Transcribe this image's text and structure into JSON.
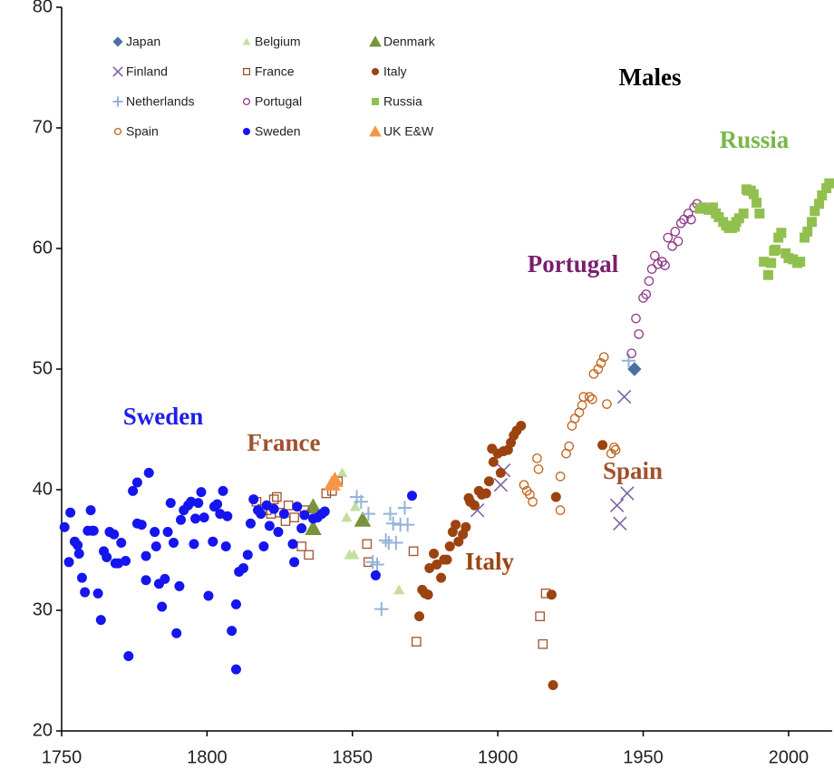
{
  "chart_data": {
    "type": "scatter",
    "annotations": [
      "Males",
      "Russia",
      "Portugal",
      "Sweden",
      "France",
      "Italy",
      "Spain"
    ],
    "xlim": [
      1750,
      2015
    ],
    "ylim": [
      20,
      80
    ],
    "xticks": [
      1750,
      1800,
      1850,
      1900,
      1950,
      2000
    ],
    "yticks": [
      20,
      30,
      40,
      50,
      60,
      70,
      80
    ],
    "legend": "upper left",
    "series": [
      {
        "name": "Japan",
        "color": "#4a6fa5",
        "marker": "diamond",
        "x": [
          1947
        ],
        "values": [
          50.0
        ]
      },
      {
        "name": "Belgium",
        "color": "#c4dea0",
        "marker": "triangle",
        "x": [
          1844,
          1846.5,
          1848,
          1849,
          1850.5,
          1851,
          1866
        ],
        "values": [
          41.0,
          41.4,
          37.7,
          34.6,
          34.6,
          38.6,
          31.7
        ]
      },
      {
        "name": "Denmark",
        "color": "#77933c",
        "marker": "triangle-large",
        "x": [
          1836.5,
          1836.5,
          1853.5
        ],
        "values": [
          38.6,
          36.8,
          37.5
        ]
      },
      {
        "name": "Finland",
        "color": "#7f63a8",
        "marker": "x",
        "x": [
          1893,
          1901,
          1902,
          1943.5,
          1941,
          1942,
          1944.5
        ],
        "values": [
          38.3,
          40.4,
          41.6,
          47.7,
          38.7,
          37.2,
          39.7
        ]
      },
      {
        "name": "France",
        "color": "#a0522d",
        "marker": "square-open",
        "x": [
          1817,
          1819,
          1820.5,
          1822,
          1823,
          1824,
          1825,
          1827,
          1828,
          1830,
          1832.5,
          1833.5,
          1835,
          1841,
          1843,
          1845,
          1855,
          1855.5,
          1871,
          1872,
          1914.5,
          1915.5,
          1916.5
        ],
        "values": [
          39.0,
          38.4,
          38.3,
          38.0,
          39.2,
          39.4,
          38.1,
          37.4,
          38.7,
          37.7,
          35.3,
          38.3,
          34.6,
          39.7,
          39.9,
          40.7,
          35.5,
          34.0,
          34.9,
          27.4,
          29.5,
          27.2,
          31.4
        ]
      },
      {
        "name": "Italy",
        "color": "#9c4311",
        "marker": "circle",
        "x": [
          1873,
          1874,
          1875,
          1876,
          1876.5,
          1878,
          1879,
          1880.5,
          1881.5,
          1882.5,
          1883.5,
          1884.5,
          1885.5,
          1886.5,
          1888,
          1889,
          1890,
          1890.5,
          1892,
          1893.5,
          1894.5,
          1896,
          1897,
          1898,
          1898.5,
          1900,
          1901,
          1902,
          1903.5,
          1904.5,
          1905.5,
          1906.5,
          1908,
          1918.5,
          1920,
          1919,
          1936
        ],
        "values": [
          29.5,
          31.7,
          31.4,
          31.3,
          33.5,
          34.7,
          33.8,
          32.7,
          34.2,
          34.2,
          35.3,
          36.5,
          37.1,
          35.7,
          36.3,
          36.9,
          39.3,
          39.0,
          38.7,
          39.9,
          39.6,
          39.7,
          40.7,
          43.4,
          42.3,
          43.0,
          41.4,
          43.2,
          43.3,
          43.9,
          44.5,
          44.9,
          45.3,
          31.3,
          39.4,
          23.8,
          43.7
        ]
      },
      {
        "name": "Netherlands",
        "color": "#95b3d7",
        "marker": "plus",
        "x": [
          1851.5,
          1853,
          1855.5,
          1857,
          1858.5,
          1860,
          1861.5,
          1863,
          1864,
          1865,
          1866.5,
          1868,
          1869,
          1862.5,
          1945
        ],
        "values": [
          39.4,
          39.0,
          38.0,
          34.0,
          33.8,
          30.1,
          35.8,
          38.0,
          37.2,
          35.6,
          37.1,
          38.5,
          37.1,
          35.6,
          50.7
        ]
      },
      {
        "name": "Portugal",
        "color": "#8e3a86",
        "marker": "circle-open",
        "x": [
          1946,
          1947.5,
          1948.5,
          1950,
          1951,
          1952,
          1953,
          1954,
          1955,
          1956.5,
          1957.5,
          1958.5,
          1960,
          1961,
          1962,
          1963,
          1964,
          1965.5,
          1966.5,
          1967.5,
          1968.5
        ],
        "values": [
          51.3,
          54.2,
          52.9,
          55.9,
          56.2,
          57.3,
          58.3,
          59.4,
          58.7,
          58.9,
          58.6,
          60.9,
          60.2,
          61.4,
          60.6,
          62.1,
          62.4,
          62.9,
          62.4,
          63.4,
          63.7
        ]
      },
      {
        "name": "Russia",
        "color": "#92c04f",
        "marker": "square",
        "x": [
          1969.5,
          1970.5,
          1972.5,
          1974,
          1975,
          1976,
          1977.5,
          1978.5,
          1979.5,
          1980.5,
          1981.5,
          1982,
          1983,
          1984.5,
          1985.5,
          1986,
          1987,
          1988,
          1989,
          1990,
          1991.5,
          1993,
          1994,
          1995,
          1995.5,
          1996.5,
          1997.5,
          1999,
          2000,
          2001.5,
          2003,
          2004,
          2005.5,
          2006.5,
          2008,
          2009,
          2010.5,
          2011.5,
          2013,
          2014
        ],
        "values": [
          63.3,
          63.4,
          63.2,
          63.4,
          62.9,
          62.6,
          62.2,
          61.9,
          61.7,
          61.7,
          61.8,
          62.2,
          62.5,
          62.9,
          64.9,
          64.8,
          64.8,
          64.5,
          63.8,
          62.9,
          58.9,
          57.8,
          58.8,
          59.8,
          59.9,
          60.9,
          61.3,
          59.6,
          59.2,
          59.1,
          58.8,
          58.9,
          60.9,
          61.4,
          62.2,
          63.1,
          63.7,
          64.4,
          65.0,
          65.4
        ]
      },
      {
        "name": "Spain",
        "color": "#c0631f",
        "marker": "circle-open",
        "x": [
          1909,
          1910,
          1911,
          1912,
          1913.5,
          1914,
          1921.5,
          1921.5,
          1923.5,
          1924.5,
          1925.5,
          1926.5,
          1928,
          1929,
          1929.5,
          1931.5,
          1932.5,
          1933,
          1934.5,
          1935.5,
          1936.5,
          1937.5,
          1939,
          1940,
          1940.5
        ],
        "values": [
          40.4,
          39.9,
          39.6,
          39.0,
          42.6,
          41.7,
          41.1,
          38.3,
          43.0,
          43.6,
          45.3,
          45.9,
          46.4,
          47.0,
          47.7,
          47.7,
          47.5,
          49.6,
          50.0,
          50.5,
          51.0,
          47.1,
          43.0,
          43.5,
          43.3
        ]
      },
      {
        "name": "Sweden",
        "color": "#1515f0",
        "marker": "circle",
        "x": [
          1751,
          1752.5,
          1753,
          1754.5,
          1755.5,
          1756,
          1757,
          1758,
          1759,
          1760,
          1760.5,
          1761,
          1762.5,
          1763.5,
          1764.5,
          1765.5,
          1766.5,
          1768,
          1768.5,
          1769.5,
          1770.5,
          1772,
          1773,
          1774.5,
          1776,
          1776,
          1777.5,
          1779,
          1779,
          1780,
          1782,
          1782.5,
          1783.5,
          1784.5,
          1785.5,
          1786.5,
          1787.5,
          1788.5,
          1789.5,
          1790.5,
          1791,
          1792,
          1793.5,
          1794.5,
          1795.5,
          1796,
          1797,
          1798,
          1799,
          1800.5,
          1802,
          1802.5,
          1803.5,
          1804.5,
          1805.5,
          1806.5,
          1807,
          1808.5,
          1810,
          1810,
          1811,
          1812.5,
          1814,
          1815,
          1816,
          1817.5,
          1818.5,
          1819.5,
          1820.5,
          1821.5,
          1823,
          1824.5,
          1826.5,
          1829.5,
          1830,
          1831,
          1832.5,
          1833.5,
          1836.5,
          1838,
          1839.5,
          1840.5,
          1858,
          1870.5
        ],
        "values": [
          36.9,
          34.0,
          38.1,
          35.7,
          35.4,
          34.7,
          32.7,
          31.5,
          36.6,
          38.3,
          36.6,
          36.6,
          31.4,
          29.2,
          34.9,
          34.4,
          36.5,
          36.3,
          33.9,
          33.9,
          35.6,
          34.1,
          26.2,
          39.9,
          40.6,
          37.2,
          37.1,
          34.5,
          32.5,
          41.4,
          36.5,
          35.3,
          32.2,
          30.3,
          32.6,
          36.5,
          38.9,
          35.6,
          28.1,
          32.0,
          37.5,
          38.3,
          38.7,
          39.0,
          35.5,
          37.6,
          38.9,
          39.8,
          37.7,
          31.2,
          35.7,
          38.6,
          38.8,
          38.0,
          39.9,
          35.3,
          37.8,
          28.3,
          25.1,
          30.5,
          33.2,
          33.5,
          34.6,
          37.2,
          39.2,
          38.3,
          38.0,
          35.3,
          38.7,
          37.0,
          38.4,
          36.5,
          38.0,
          35.5,
          34.0,
          38.6,
          36.8,
          37.9,
          37.6,
          37.7,
          38.0,
          38.2,
          32.9,
          39.5
        ]
      },
      {
        "name": "UK E&W",
        "color": "#f79646",
        "marker": "triangle-large",
        "x": [
          1844,
          1843
        ],
        "values": [
          40.8,
          40.5
        ]
      }
    ]
  }
}
